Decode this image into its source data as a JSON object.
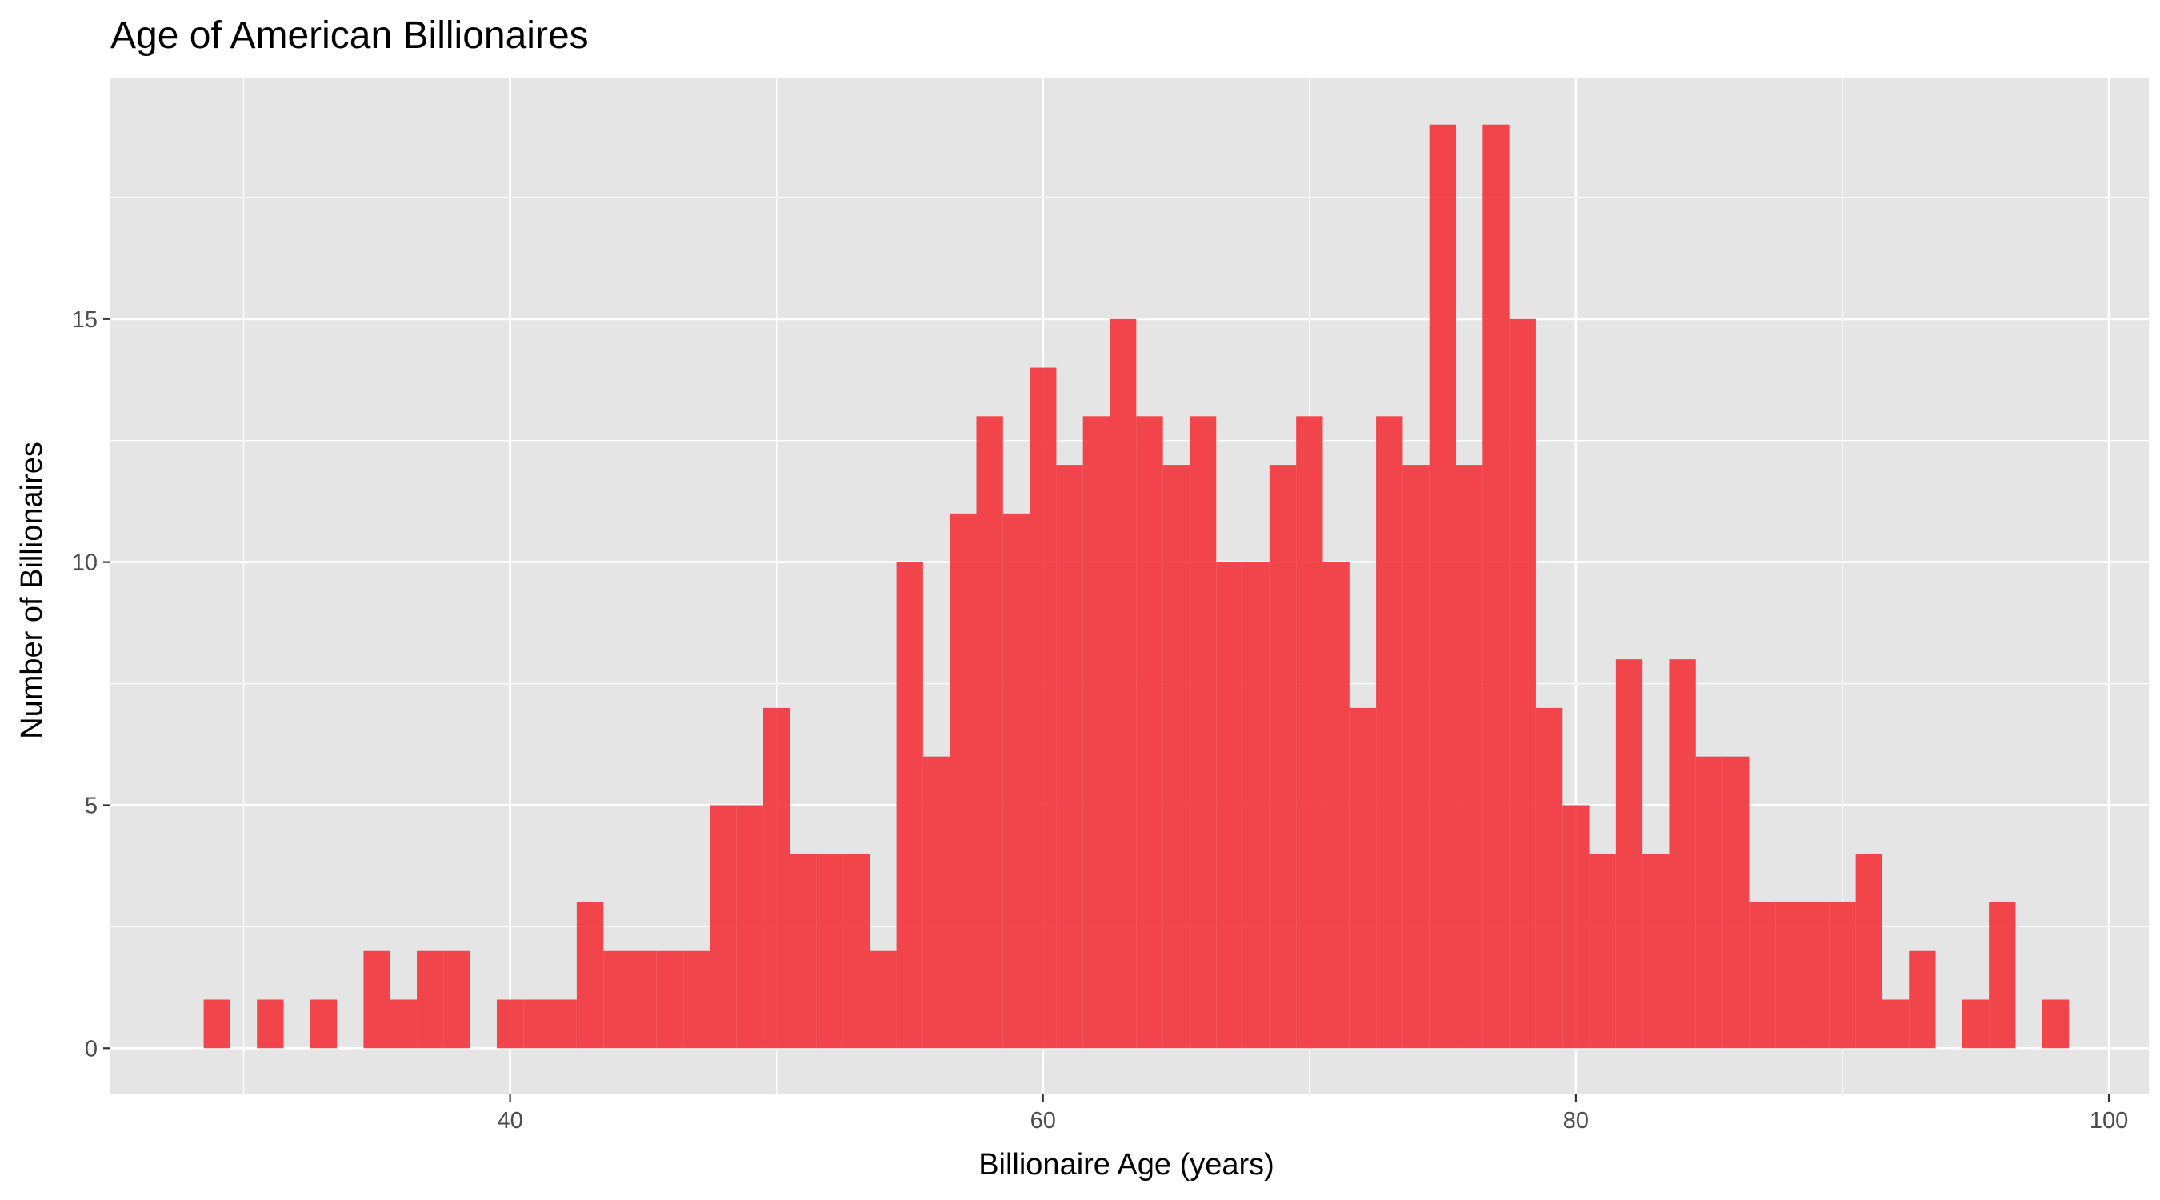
{
  "chart_data": {
    "type": "bar",
    "title": "Age of American Billionaires",
    "xlabel": "Billionaire Age (years)",
    "ylabel": "Number of Billionaires",
    "xlim": [
      25,
      101.5
    ],
    "ylim": [
      -0.95,
      19.95
    ],
    "x_ticks": [
      40,
      60,
      80,
      100
    ],
    "y_ticks": [
      0,
      5,
      10,
      15
    ],
    "bin_width": 1,
    "bins": [
      {
        "x": 29,
        "count": 1
      },
      {
        "x": 30,
        "count": 0
      },
      {
        "x": 31,
        "count": 1
      },
      {
        "x": 32,
        "count": 0
      },
      {
        "x": 33,
        "count": 1
      },
      {
        "x": 34,
        "count": 0
      },
      {
        "x": 35,
        "count": 2
      },
      {
        "x": 36,
        "count": 1
      },
      {
        "x": 37,
        "count": 2
      },
      {
        "x": 38,
        "count": 2
      },
      {
        "x": 39,
        "count": 0
      },
      {
        "x": 40,
        "count": 1
      },
      {
        "x": 41,
        "count": 1
      },
      {
        "x": 42,
        "count": 1
      },
      {
        "x": 43,
        "count": 3
      },
      {
        "x": 44,
        "count": 2
      },
      {
        "x": 45,
        "count": 2
      },
      {
        "x": 46,
        "count": 2
      },
      {
        "x": 47,
        "count": 2
      },
      {
        "x": 48,
        "count": 5
      },
      {
        "x": 49,
        "count": 5
      },
      {
        "x": 50,
        "count": 7
      },
      {
        "x": 51,
        "count": 4
      },
      {
        "x": 52,
        "count": 4
      },
      {
        "x": 53,
        "count": 4
      },
      {
        "x": 54,
        "count": 2
      },
      {
        "x": 55,
        "count": 10
      },
      {
        "x": 56,
        "count": 6
      },
      {
        "x": 57,
        "count": 11
      },
      {
        "x": 58,
        "count": 13
      },
      {
        "x": 59,
        "count": 11
      },
      {
        "x": 60,
        "count": 14
      },
      {
        "x": 61,
        "count": 12
      },
      {
        "x": 62,
        "count": 13
      },
      {
        "x": 63,
        "count": 15
      },
      {
        "x": 64,
        "count": 13
      },
      {
        "x": 65,
        "count": 12
      },
      {
        "x": 66,
        "count": 13
      },
      {
        "x": 67,
        "count": 10
      },
      {
        "x": 68,
        "count": 10
      },
      {
        "x": 69,
        "count": 12
      },
      {
        "x": 70,
        "count": 13
      },
      {
        "x": 71,
        "count": 10
      },
      {
        "x": 72,
        "count": 7
      },
      {
        "x": 73,
        "count": 13
      },
      {
        "x": 74,
        "count": 12
      },
      {
        "x": 75,
        "count": 19
      },
      {
        "x": 76,
        "count": 12
      },
      {
        "x": 77,
        "count": 19
      },
      {
        "x": 78,
        "count": 15
      },
      {
        "x": 79,
        "count": 7
      },
      {
        "x": 80,
        "count": 5
      },
      {
        "x": 81,
        "count": 4
      },
      {
        "x": 82,
        "count": 8
      },
      {
        "x": 83,
        "count": 4
      },
      {
        "x": 84,
        "count": 8
      },
      {
        "x": 85,
        "count": 6
      },
      {
        "x": 86,
        "count": 6
      },
      {
        "x": 87,
        "count": 3
      },
      {
        "x": 88,
        "count": 3
      },
      {
        "x": 89,
        "count": 3
      },
      {
        "x": 90,
        "count": 3
      },
      {
        "x": 91,
        "count": 4
      },
      {
        "x": 92,
        "count": 1
      },
      {
        "x": 93,
        "count": 2
      },
      {
        "x": 94,
        "count": 0
      },
      {
        "x": 95,
        "count": 1
      },
      {
        "x": 96,
        "count": 3
      },
      {
        "x": 97,
        "count": 0
      },
      {
        "x": 98,
        "count": 1
      }
    ],
    "grid": true,
    "legend": "none",
    "colors": {
      "bar": "#f2333a",
      "panel_background": "#e5e5e5",
      "grid": "#ffffff",
      "tick": "#333333",
      "tick_label": "#4d4d4d"
    }
  }
}
